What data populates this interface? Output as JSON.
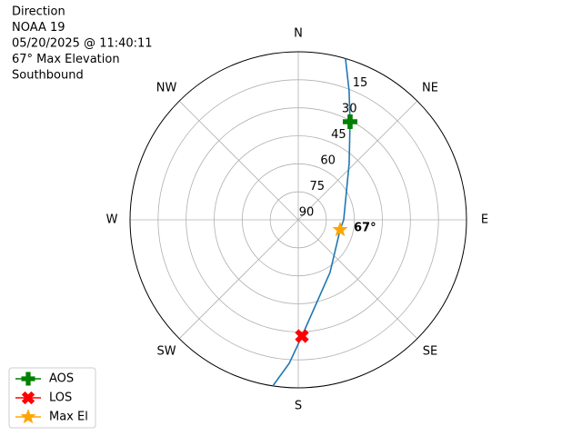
{
  "chart_data": {
    "type": "polar",
    "title": [
      "Direction",
      "NOAA 19",
      "05/20/2025 @ 11:40:11",
      "67° Max Elevation",
      "Southbound"
    ],
    "theta_labels": [
      "N",
      "NE",
      "E",
      "SE",
      "S",
      "SW",
      "W",
      "NW"
    ],
    "rlim": [
      90,
      0
    ],
    "rticks": [
      15,
      30,
      45,
      60,
      75,
      90
    ],
    "grid": true,
    "legend": "lower left",
    "series": [
      {
        "color": "#1f77b4",
        "marker": "none",
        "az": [
          16.3,
          21.5,
          27.8,
          42.1,
          90,
          103.4,
          148.9,
          178.2,
          183.6,
          188.7
        ],
        "values": [
          0,
          15.8,
          30.6,
          49.4,
          65.7,
          67,
          57.1,
          27.7,
          13,
          0
        ]
      },
      {
        "name": "AOS",
        "color": "#008000",
        "marker": "plus",
        "az": [
          27.8
        ],
        "values": [
          30.6
        ]
      },
      {
        "name": "LOS",
        "color": "#ff0000",
        "marker": "x",
        "az": [
          178.2
        ],
        "values": [
          27.7
        ]
      },
      {
        "name": "Max El",
        "color": "#ffa500",
        "marker": "star",
        "az": [
          103.4
        ],
        "values": [
          67
        ],
        "value_labels": [
          "67°"
        ]
      }
    ]
  }
}
